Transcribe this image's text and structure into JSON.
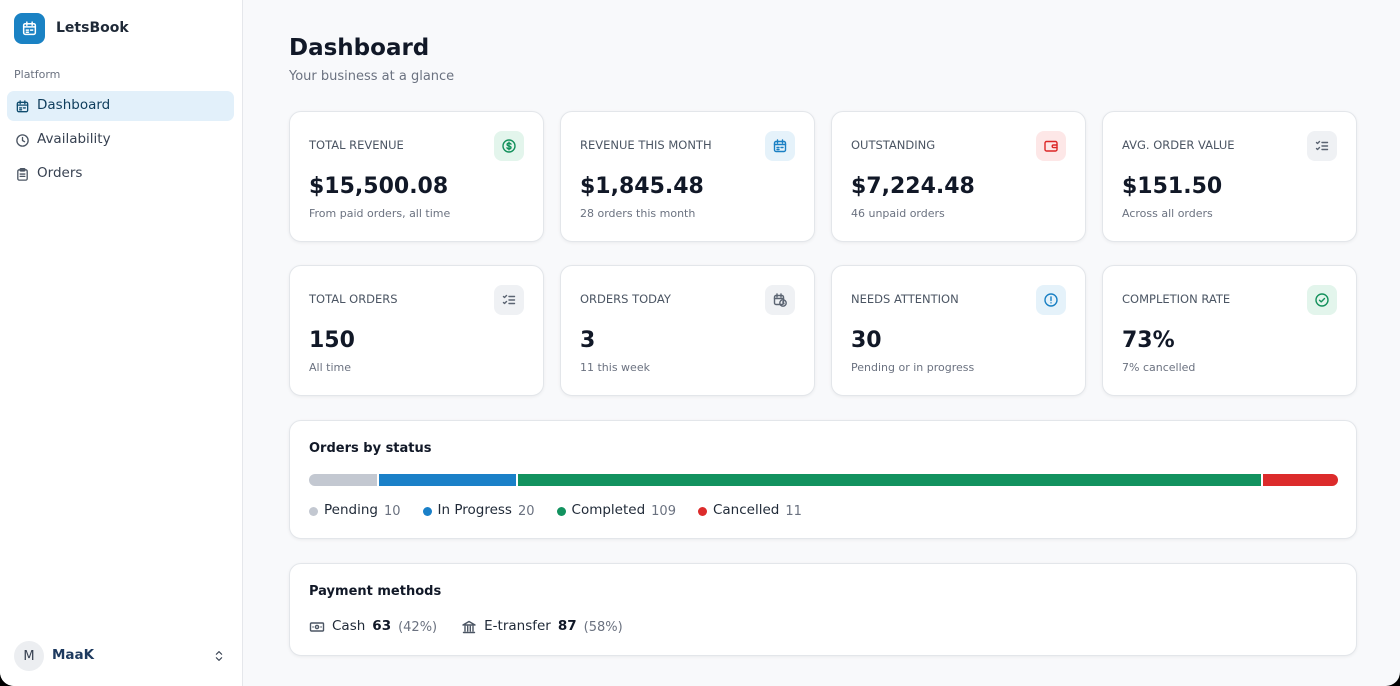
{
  "sidebar": {
    "brand": "LetsBook",
    "section": "Platform",
    "nav": [
      "Dashboard",
      "Availability",
      "Orders"
    ],
    "user": {
      "initial": "M",
      "name": "MaaK"
    }
  },
  "header": {
    "title": "Dashboard",
    "subtitle": "Your business at a glance"
  },
  "stats": [
    {
      "label": "TOTAL REVENUE",
      "value": "$15,500.08",
      "note": "From paid orders, all time"
    },
    {
      "label": "REVENUE THIS MONTH",
      "value": "$1,845.48",
      "note": "28 orders this month"
    },
    {
      "label": "OUTSTANDING",
      "value": "$7,224.48",
      "note": "46 unpaid orders"
    },
    {
      "label": "AVG. ORDER VALUE",
      "value": "$151.50",
      "note": "Across all orders"
    },
    {
      "label": "TOTAL ORDERS",
      "value": "150",
      "note": "All time"
    },
    {
      "label": "ORDERS TODAY",
      "value": "3",
      "note": "11 this week"
    },
    {
      "label": "NEEDS ATTENTION",
      "value": "30",
      "note": "Pending or in progress"
    },
    {
      "label": "COMPLETION RATE",
      "value": "73%",
      "note": "7% cancelled"
    }
  ],
  "orders_by_status": {
    "title": "Orders by status",
    "segments": [
      {
        "name": "Pending",
        "value": 10,
        "color": "#c3c8d1"
      },
      {
        "name": "In Progress",
        "value": 20,
        "color": "#1a80c8"
      },
      {
        "name": "Completed",
        "value": 109,
        "color": "#12925f"
      },
      {
        "name": "Cancelled",
        "value": 11,
        "color": "#dc2b2b"
      }
    ]
  },
  "payment_methods": {
    "title": "Payment methods",
    "items": [
      {
        "name": "Cash",
        "count": 63,
        "share": "(42%)"
      },
      {
        "name": "E-transfer",
        "count": 87,
        "share": "(58%)"
      }
    ]
  }
}
